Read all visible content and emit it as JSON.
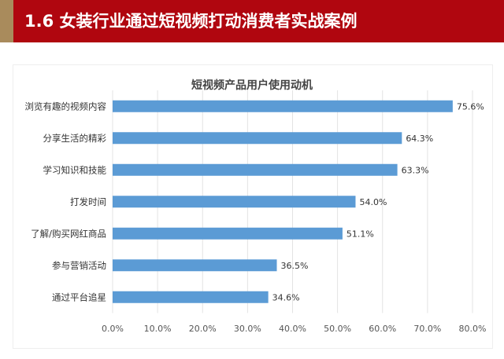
{
  "header": {
    "title": "1.6 女装行业通过短视频打动消费者实战案例"
  },
  "colors": {
    "header_bg": "#b0060f",
    "bar": "#5b9bd5",
    "accent_strip": "#a98b5c"
  },
  "chart_data": {
    "type": "bar",
    "orientation": "horizontal",
    "title": "短视频产品用户使用动机",
    "categories": [
      "浏览有趣的视频内容",
      "分享生活的精彩",
      "学习知识和技能",
      "打发时间",
      "了解/购买网红商品",
      "参与营销活动",
      "通过平台追星"
    ],
    "values": [
      75.6,
      64.3,
      63.3,
      54.0,
      51.1,
      36.5,
      34.6
    ],
    "value_labels": [
      "75.6%",
      "64.3%",
      "63.3%",
      "54.0%",
      "51.1%",
      "36.5%",
      "34.6%"
    ],
    "xticks": [
      "0.0%",
      "10.0%",
      "20.0%",
      "30.0%",
      "40.0%",
      "50.0%",
      "60.0%",
      "70.0%",
      "80.0%"
    ],
    "xlim": [
      0,
      80
    ],
    "grid": true,
    "legend": "none"
  }
}
